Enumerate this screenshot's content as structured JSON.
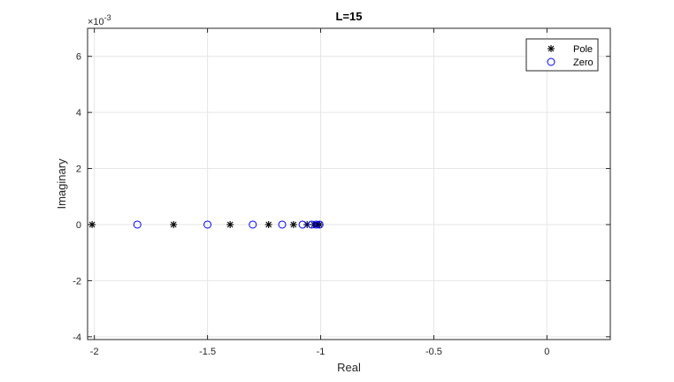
{
  "chart_data": {
    "type": "scatter",
    "title": "L=15",
    "xlabel": "Real",
    "ylabel": "Imaginary",
    "xlim": [
      -2.03,
      0.28
    ],
    "ylim": [
      -0.0041,
      0.007
    ],
    "y_exponent_label": "×10",
    "y_exponent": "-3",
    "y_scale_factor": 0.001,
    "xticks": [
      -2,
      -1.5,
      -1,
      -0.5,
      0
    ],
    "xtick_labels": [
      "-2",
      "-1.5",
      "-1",
      "-0.5",
      "0"
    ],
    "yticks": [
      -0.004,
      -0.002,
      0,
      0.002,
      0.004,
      0.006
    ],
    "ytick_labels": [
      "-4",
      "-2",
      "0",
      "2",
      "4",
      "6"
    ],
    "grid": true,
    "legend_position": "top-right",
    "series": [
      {
        "name": "Pole",
        "marker": "asterisk",
        "color": "#000000",
        "x": [
          -2.01,
          -1.65,
          -1.4,
          -1.23,
          -1.12,
          -1.06,
          -1.03,
          -1.015,
          -1.005
        ],
        "y": [
          0,
          0,
          0,
          0,
          0,
          0,
          0,
          0,
          0
        ]
      },
      {
        "name": "Zero",
        "marker": "circle",
        "color": "#0000ff",
        "x": [
          -1.81,
          -1.5,
          -1.3,
          -1.17,
          -1.08,
          -1.04,
          -1.02,
          -1.005
        ],
        "y": [
          0,
          0,
          0,
          0,
          0,
          0,
          0,
          0
        ]
      }
    ]
  }
}
